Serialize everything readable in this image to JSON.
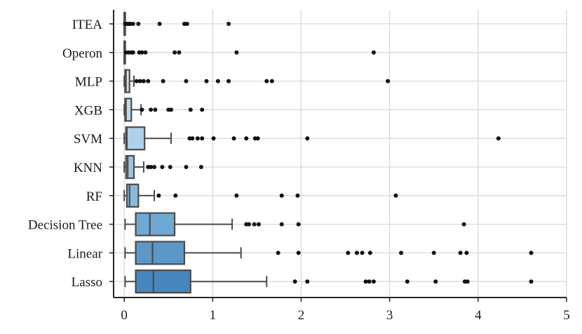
{
  "chart_data": {
    "type": "box",
    "orientation": "horizontal",
    "title": "",
    "xlabel": "",
    "ylabel": "",
    "xlim": [
      -0.12,
      5.0
    ],
    "xticks": [
      0,
      1,
      2,
      3,
      4,
      5
    ],
    "xtick_labels": [
      "0",
      "1",
      "2",
      "3",
      "4",
      "5"
    ],
    "grid": true,
    "legend": "none",
    "categories": [
      "ITEA",
      "Operon",
      "MLP",
      "XGB",
      "SVM",
      "KNN",
      "RF",
      "Decision Tree",
      "Linear",
      "Lasso"
    ],
    "boxes": [
      {
        "label": "ITEA",
        "whisker_low": 0.0,
        "q1": 0.0,
        "median": 0.0,
        "q3": 0.005,
        "whisker_high": 0.01,
        "color": "#e9f1fa",
        "outliers": [
          0.01,
          0.03,
          0.05,
          0.07,
          0.1,
          0.16,
          0.4,
          0.68,
          0.71,
          1.18
        ]
      },
      {
        "label": "Operon",
        "whisker_low": 0.0,
        "q1": 0.0,
        "median": 0.0,
        "q3": 0.005,
        "whisker_high": 0.01,
        "color": "#deeaf6",
        "outliers": [
          0.02,
          0.05,
          0.08,
          0.1,
          0.17,
          0.2,
          0.24,
          0.57,
          0.62,
          1.27,
          2.82
        ]
      },
      {
        "label": "MLP",
        "whisker_low": 0.0,
        "q1": 0.01,
        "median": 0.02,
        "q3": 0.06,
        "whisker_high": 0.11,
        "color": "#d0e2f1",
        "outliers": [
          0.14,
          0.18,
          0.22,
          0.27,
          0.44,
          0.7,
          0.93,
          1.06,
          1.18,
          1.61,
          1.67,
          2.98
        ]
      },
      {
        "label": "XGB",
        "whisker_low": 0.0,
        "q1": 0.01,
        "median": 0.02,
        "q3": 0.08,
        "whisker_high": 0.19,
        "color": "#c1d9ee",
        "outliers": [
          0.2,
          0.3,
          0.35,
          0.5,
          0.53,
          0.75,
          0.88
        ]
      },
      {
        "label": "SVM",
        "whisker_low": 0.0,
        "q1": 0.02,
        "median": 0.03,
        "q3": 0.23,
        "whisker_high": 0.53,
        "color": "#b0d0e9",
        "outliers": [
          0.74,
          0.77,
          0.83,
          0.88,
          1.01,
          1.24,
          1.38,
          1.48,
          1.51,
          2.07,
          4.23
        ]
      },
      {
        "label": "KNN",
        "whisker_low": 0.0,
        "q1": 0.02,
        "median": 0.04,
        "q3": 0.11,
        "whisker_high": 0.22,
        "color": "#9dc5e3",
        "outliers": [
          0.27,
          0.3,
          0.34,
          0.43,
          0.52,
          0.7,
          0.87
        ]
      },
      {
        "label": "RF",
        "whisker_low": 0.0,
        "q1": 0.03,
        "median": 0.06,
        "q3": 0.16,
        "whisker_high": 0.34,
        "color": "#8ab9dd",
        "outliers": [
          0.39,
          0.58,
          1.27,
          1.78,
          1.96,
          3.07
        ]
      },
      {
        "label": "Decision Tree",
        "whisker_low": 0.01,
        "q1": 0.13,
        "median": 0.29,
        "q3": 0.57,
        "whisker_high": 1.22,
        "color": "#6fa8d2",
        "outliers": [
          1.38,
          1.41,
          1.47,
          1.52,
          1.78,
          1.97,
          3.84
        ]
      },
      {
        "label": "Linear",
        "whisker_low": 0.01,
        "q1": 0.13,
        "median": 0.32,
        "q3": 0.68,
        "whisker_high": 1.32,
        "color": "#5b98c8",
        "outliers": [
          1.74,
          1.97,
          2.53,
          2.63,
          2.69,
          2.78,
          3.13,
          3.5,
          3.8,
          3.87,
          4.6
        ]
      },
      {
        "label": "Lasso",
        "whisker_low": 0.01,
        "q1": 0.13,
        "median": 0.33,
        "q3": 0.75,
        "whisker_high": 1.61,
        "color": "#4786bd",
        "outliers": [
          1.93,
          2.07,
          2.73,
          2.77,
          2.82,
          3.2,
          3.52,
          3.85,
          3.88,
          4.6
        ]
      }
    ],
    "colors": {
      "edge": "#4b4b4b",
      "grid": "#d9d9d9",
      "axis": "#262626",
      "outlier": "#111111"
    }
  }
}
